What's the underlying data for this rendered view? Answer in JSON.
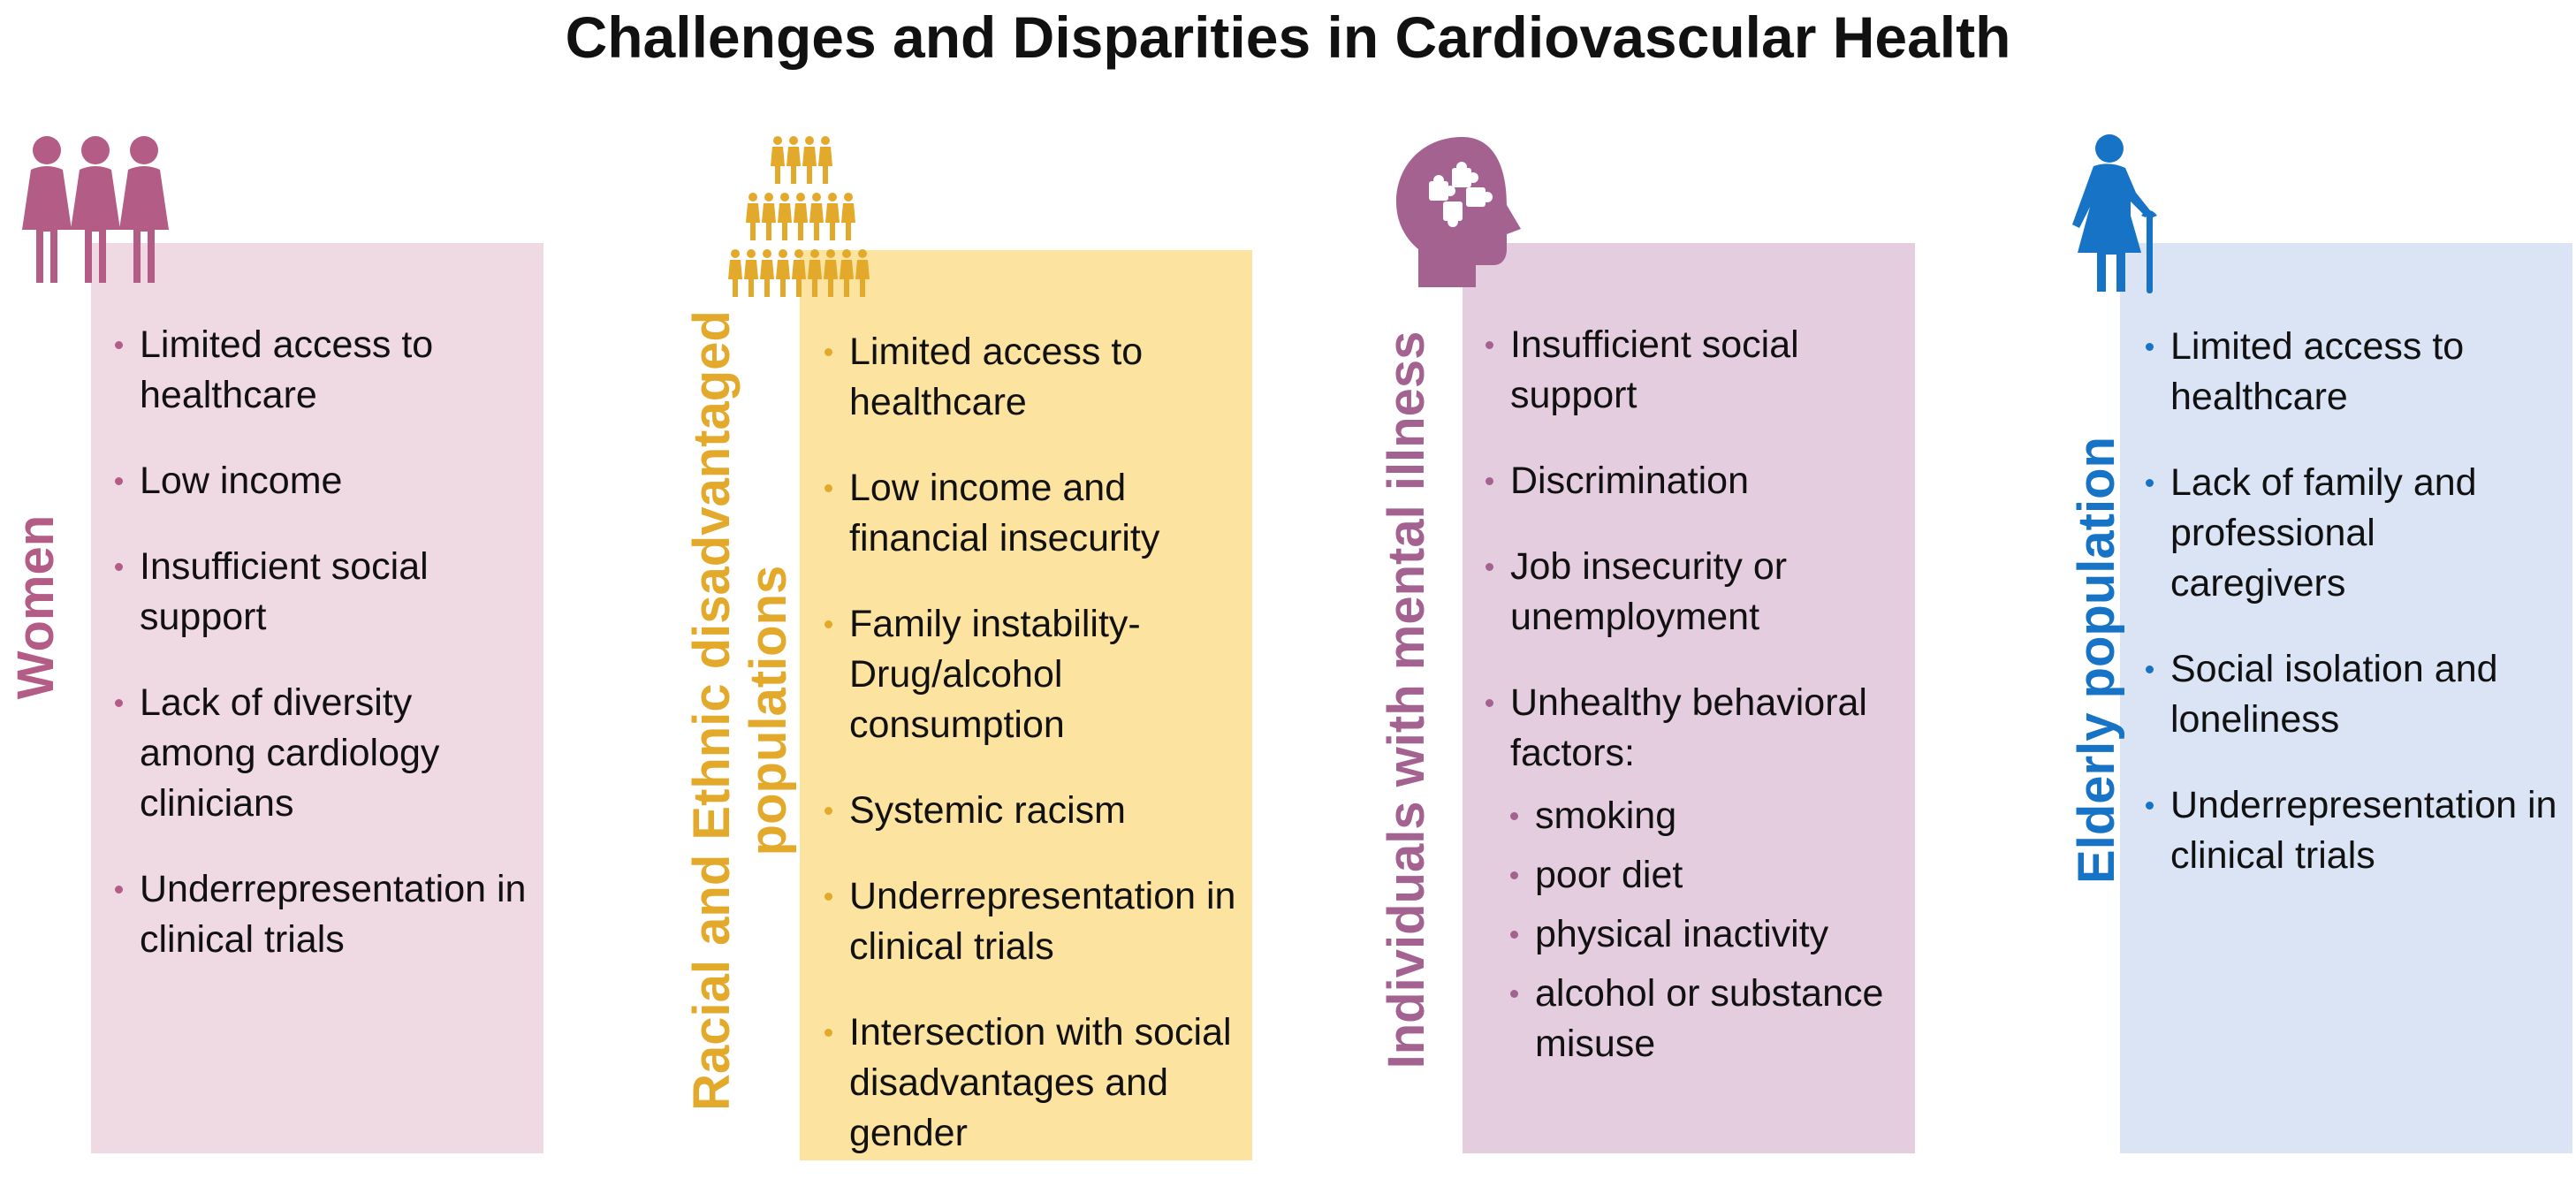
{
  "title": "Challenges and Disparities in Cardiovascular Health",
  "colors": {
    "women": "#b35c85",
    "women_bg": "#efd9e3",
    "racial": "#e3a92b",
    "racial_bg": "#fde3a0",
    "mental": "#a46291",
    "mental_bg": "#e4cdde",
    "elderly": "#1673c6",
    "elderly_bg": "#dae4f4"
  },
  "columns": [
    {
      "label": "Women",
      "icon": "three-women-icon",
      "items": [
        "Limited access to healthcare",
        "Low income",
        "Insufficient social support",
        "Lack of diversity among cardiology clinicians",
        "Underrepresentation in clinical trials"
      ]
    },
    {
      "label": "Racial and Ethnic disadvantaged populations",
      "icon": "crowd-pyramid-icon",
      "items": [
        "Limited access to healthcare",
        "Low income and financial insecurity",
        "Family instability-Drug/alcohol consumption",
        "Systemic racism",
        "Underrepresentation in clinical trials",
        "Intersection with social disadvantages and gender"
      ]
    },
    {
      "label": "Individuals with mental illness",
      "icon": "head-puzzle-icon",
      "items": [
        "Insufficient social support",
        "Discrimination",
        "Job insecurity or unemployment",
        "Unhealthy behavioral factors:"
      ],
      "subitems": [
        "smoking",
        "poor diet",
        "physical inactivity",
        "alcohol or substance misuse"
      ]
    },
    {
      "label": "Elderly population",
      "icon": "elderly-person-cane-icon",
      "items": [
        "Limited access to healthcare",
        "Lack of family and professional caregivers",
        "Social isolation and loneliness",
        "Underrepresentation in clinical trials"
      ]
    }
  ]
}
